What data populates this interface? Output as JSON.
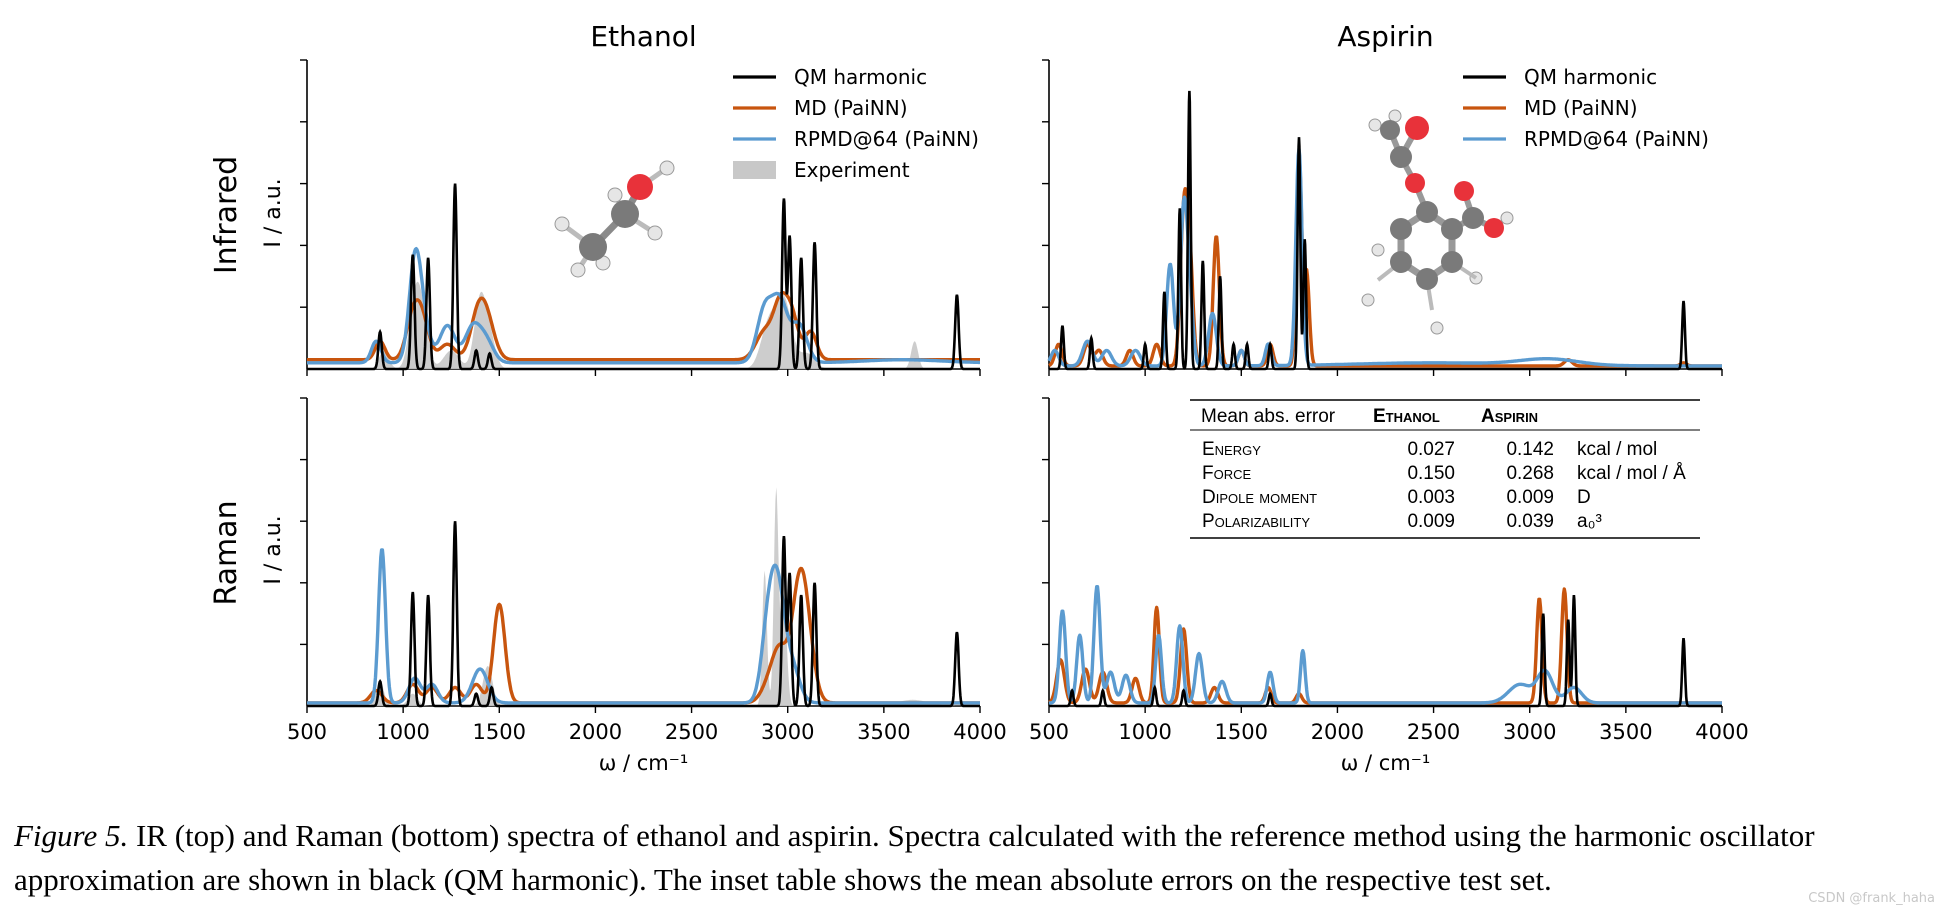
{
  "figure": {
    "caption_label": "Figure 5.",
    "caption_text": " IR (top) and Raman (bottom) spectra of ethanol and aspirin. Spectra calculated with the reference method using the harmonic oscillator approximation are shown in black (QM harmonic). The inset table shows the mean absolute errors on the respective test set.",
    "watermark": "CSDN @frank_haha"
  },
  "colors": {
    "qm": "#000000",
    "md": "#c8550e",
    "rpmd": "#5b9bd0",
    "experiment": "#c8c8c8",
    "carbon": "#7a7a7a",
    "oxygen": "#e8323a",
    "hydrogen": "#e6e6e6"
  },
  "molecules": [
    "ethanol-ball-and-stick",
    "aspirin-ball-and-stick"
  ],
  "table": {
    "header": [
      "Mean abs. error",
      "Ethanol",
      "Aspirin",
      ""
    ],
    "rows": [
      [
        "Energy",
        "0.027",
        "0.142",
        "kcal / mol"
      ],
      [
        "Force",
        "0.150",
        "0.268",
        "kcal / mol / Å"
      ],
      [
        "Dipole moment",
        "0.003",
        "0.009",
        "D"
      ],
      [
        "Polarizability",
        "0.009",
        "0.039",
        "a₀³"
      ]
    ]
  },
  "chart_data": [
    {
      "id": "ethanol-ir",
      "type": "line",
      "title": "Ethanol",
      "ylabel": "I / a.u.",
      "row_label": "Infrared",
      "xlabel": "",
      "xlim": [
        500,
        4000
      ],
      "ylim": [
        0,
        1
      ],
      "xticks": [],
      "yticks": 5,
      "legend": [
        "QM harmonic",
        "MD (PaiNN)",
        "RPMD@64 (PaiNN)",
        "Experiment"
      ],
      "series": [
        {
          "name": "QM harmonic",
          "kind": "sticks",
          "width": 9,
          "baseline": 0,
          "peaks": [
            [
              880,
              0.12
            ],
            [
              1050,
              0.37
            ],
            [
              1130,
              0.36
            ],
            [
              1270,
              0.6
            ],
            [
              1380,
              0.06
            ],
            [
              1450,
              0.05
            ],
            [
              2980,
              0.55
            ],
            [
              3010,
              0.43
            ],
            [
              3070,
              0.36
            ],
            [
              3140,
              0.41
            ],
            [
              3880,
              0.24
            ]
          ]
        },
        {
          "name": "MD (PaiNN)",
          "kind": "bands",
          "baseline": 0.03,
          "peaks": [
            [
              880,
              0.06,
              25
            ],
            [
              1050,
              0.13,
              35
            ],
            [
              1100,
              0.12,
              35
            ],
            [
              1230,
              0.05,
              40
            ],
            [
              1390,
              0.14,
              40
            ],
            [
              1440,
              0.1,
              40
            ],
            [
              2880,
              0.09,
              45
            ],
            [
              2960,
              0.16,
              35
            ],
            [
              3020,
              0.14,
              35
            ],
            [
              3120,
              0.09,
              30
            ]
          ]
        },
        {
          "name": "RPMD@64 (PaiNN)",
          "kind": "bands",
          "baseline": 0.02,
          "peaks": [
            [
              860,
              0.07,
              25
            ],
            [
              1060,
              0.24,
              30
            ],
            [
              1090,
              0.16,
              40
            ],
            [
              1230,
              0.12,
              40
            ],
            [
              1360,
              0.11,
              40
            ],
            [
              1430,
              0.07,
              40
            ],
            [
              2880,
              0.17,
              40
            ],
            [
              2960,
              0.19,
              40
            ],
            [
              3060,
              0.12,
              40
            ],
            [
              3600,
              0.01,
              200
            ]
          ]
        },
        {
          "name": "Experiment",
          "kind": "filled",
          "baseline": 0,
          "peaks": [
            [
              900,
              0.06,
              25
            ],
            [
              1060,
              0.2,
              30
            ],
            [
              1100,
              0.15,
              30
            ],
            [
              1250,
              0.06,
              40
            ],
            [
              1400,
              0.22,
              30
            ],
            [
              1450,
              0.1,
              30
            ],
            [
              2900,
              0.14,
              40
            ],
            [
              2980,
              0.22,
              40
            ],
            [
              3100,
              0.05,
              40
            ],
            [
              3660,
              0.09,
              18
            ]
          ]
        }
      ]
    },
    {
      "id": "aspirin-ir",
      "type": "line",
      "title": "Aspirin",
      "ylabel": "",
      "row_label": "",
      "xlabel": "",
      "xlim": [
        500,
        4000
      ],
      "ylim": [
        0,
        1
      ],
      "xticks": [],
      "yticks": 5,
      "legend": [
        "QM harmonic",
        "MD (PaiNN)",
        "RPMD@64 (PaiNN)"
      ],
      "series": [
        {
          "name": "QM harmonic",
          "kind": "sticks",
          "width": 7,
          "baseline": 0,
          "peaks": [
            [
              570,
              0.14
            ],
            [
              720,
              0.1
            ],
            [
              1000,
              0.08
            ],
            [
              1100,
              0.25
            ],
            [
              1180,
              0.52
            ],
            [
              1230,
              0.9
            ],
            [
              1300,
              0.35
            ],
            [
              1390,
              0.3
            ],
            [
              1460,
              0.08
            ],
            [
              1530,
              0.08
            ],
            [
              1650,
              0.08
            ],
            [
              1800,
              0.75
            ],
            [
              1830,
              0.42
            ],
            [
              3800,
              0.22
            ]
          ]
        },
        {
          "name": "MD (PaiNN)",
          "kind": "bands",
          "baseline": 0.01,
          "peaks": [
            [
              550,
              0.07,
              18
            ],
            [
              700,
              0.07,
              20
            ],
            [
              760,
              0.05,
              20
            ],
            [
              920,
              0.05,
              18
            ],
            [
              1060,
              0.07,
              18
            ],
            [
              1200,
              0.45,
              18
            ],
            [
              1230,
              0.35,
              18
            ],
            [
              1370,
              0.42,
              16
            ],
            [
              1500,
              0.05,
              15
            ],
            [
              1650,
              0.07,
              15
            ],
            [
              1800,
              0.68,
              14
            ],
            [
              1840,
              0.3,
              14
            ],
            [
              3200,
              0.02,
              20
            ],
            [
              3800,
              0.01,
              15
            ]
          ]
        },
        {
          "name": "RPMD@64 (PaiNN)",
          "kind": "bands",
          "baseline": 0.01,
          "peaks": [
            [
              530,
              0.05,
              20
            ],
            [
              700,
              0.08,
              25
            ],
            [
              800,
              0.05,
              25
            ],
            [
              950,
              0.05,
              25
            ],
            [
              1130,
              0.33,
              18
            ],
            [
              1200,
              0.48,
              18
            ],
            [
              1230,
              0.22,
              18
            ],
            [
              1350,
              0.17,
              20
            ],
            [
              1500,
              0.05,
              15
            ],
            [
              1640,
              0.07,
              15
            ],
            [
              1800,
              0.7,
              16
            ],
            [
              2500,
              0.01,
              400
            ],
            [
              3100,
              0.02,
              150
            ]
          ]
        }
      ]
    },
    {
      "id": "ethanol-raman",
      "type": "line",
      "title": "",
      "ylabel": "I / a.u.",
      "row_label": "Raman",
      "xlabel": "ω / cm⁻¹",
      "xlim": [
        500,
        4000
      ],
      "ylim": [
        0,
        1
      ],
      "xticks": [
        500,
        1000,
        1500,
        2000,
        2500,
        3000,
        3500,
        4000
      ],
      "yticks": 5,
      "legend": [],
      "series": [
        {
          "name": "QM harmonic",
          "kind": "sticks",
          "width": 9,
          "baseline": 0,
          "peaks": [
            [
              880,
              0.08
            ],
            [
              1050,
              0.37
            ],
            [
              1130,
              0.36
            ],
            [
              1270,
              0.6
            ],
            [
              1380,
              0.04
            ],
            [
              1460,
              0.06
            ],
            [
              2980,
              0.55
            ],
            [
              3010,
              0.43
            ],
            [
              3070,
              0.36
            ],
            [
              3140,
              0.4
            ],
            [
              3880,
              0.24
            ]
          ]
        },
        {
          "name": "MD (PaiNN)",
          "kind": "bands",
          "baseline": 0.01,
          "peaks": [
            [
              860,
              0.04,
              30
            ],
            [
              1050,
              0.06,
              30
            ],
            [
              1150,
              0.05,
              30
            ],
            [
              1270,
              0.05,
              30
            ],
            [
              1380,
              0.06,
              30
            ],
            [
              1500,
              0.32,
              30
            ],
            [
              2900,
              0.05,
              40
            ],
            [
              2960,
              0.16,
              40
            ],
            [
              3060,
              0.33,
              40
            ],
            [
              3100,
              0.15,
              40
            ]
          ]
        },
        {
          "name": "RPMD@64 (PaiNN)",
          "kind": "bands",
          "baseline": 0.01,
          "peaks": [
            [
              890,
              0.5,
              18
            ],
            [
              1060,
              0.08,
              30
            ],
            [
              1150,
              0.06,
              30
            ],
            [
              1400,
              0.11,
              40
            ],
            [
              2900,
              0.25,
              35
            ],
            [
              2950,
              0.31,
              35
            ],
            [
              3020,
              0.12,
              40
            ]
          ]
        },
        {
          "name": "Experiment",
          "kind": "filled",
          "baseline": 0,
          "peaks": [
            [
              880,
              0.08,
              20
            ],
            [
              1050,
              0.04,
              25
            ],
            [
              1440,
              0.13,
              25
            ],
            [
              2880,
              0.44,
              12
            ],
            [
              2940,
              0.7,
              12
            ],
            [
              2980,
              0.35,
              15
            ],
            [
              3650,
              0.02,
              80
            ]
          ]
        }
      ]
    },
    {
      "id": "aspirin-raman",
      "type": "line",
      "title": "",
      "ylabel": "",
      "row_label": "",
      "xlabel": "ω / cm⁻¹",
      "xlim": [
        500,
        4000
      ],
      "ylim": [
        0,
        1
      ],
      "xticks": [
        500,
        1000,
        1500,
        2000,
        2500,
        3000,
        3500,
        4000
      ],
      "yticks": 5,
      "legend": [],
      "series": [
        {
          "name": "QM harmonic",
          "kind": "sticks",
          "width": 7,
          "baseline": 0,
          "peaks": [
            [
              620,
              0.05
            ],
            [
              780,
              0.05
            ],
            [
              1050,
              0.06
            ],
            [
              1200,
              0.05
            ],
            [
              1650,
              0.04
            ],
            [
              3070,
              0.3
            ],
            [
              3200,
              0.28
            ],
            [
              3230,
              0.36
            ],
            [
              3800,
              0.22
            ]
          ]
        },
        {
          "name": "MD (PaiNN)",
          "kind": "bands",
          "baseline": 0.01,
          "peaks": [
            [
              560,
              0.14,
              20
            ],
            [
              690,
              0.11,
              20
            ],
            [
              780,
              0.1,
              20
            ],
            [
              950,
              0.08,
              18
            ],
            [
              1060,
              0.31,
              14
            ],
            [
              1200,
              0.24,
              16
            ],
            [
              1360,
              0.05,
              18
            ],
            [
              1640,
              0.05,
              15
            ],
            [
              1800,
              0.03,
              15
            ],
            [
              3050,
              0.34,
              14
            ],
            [
              3180,
              0.37,
              14
            ]
          ]
        },
        {
          "name": "RPMD@64 (PaiNN)",
          "kind": "bands",
          "baseline": 0.01,
          "peaks": [
            [
              570,
              0.3,
              16
            ],
            [
              660,
              0.22,
              16
            ],
            [
              750,
              0.38,
              16
            ],
            [
              820,
              0.1,
              20
            ],
            [
              900,
              0.09,
              20
            ],
            [
              1070,
              0.22,
              15
            ],
            [
              1180,
              0.25,
              16
            ],
            [
              1280,
              0.16,
              18
            ],
            [
              1400,
              0.07,
              20
            ],
            [
              1650,
              0.1,
              15
            ],
            [
              1820,
              0.17,
              12
            ],
            [
              2950,
              0.06,
              60
            ],
            [
              3080,
              0.1,
              40
            ],
            [
              3230,
              0.05,
              40
            ]
          ]
        }
      ]
    }
  ]
}
